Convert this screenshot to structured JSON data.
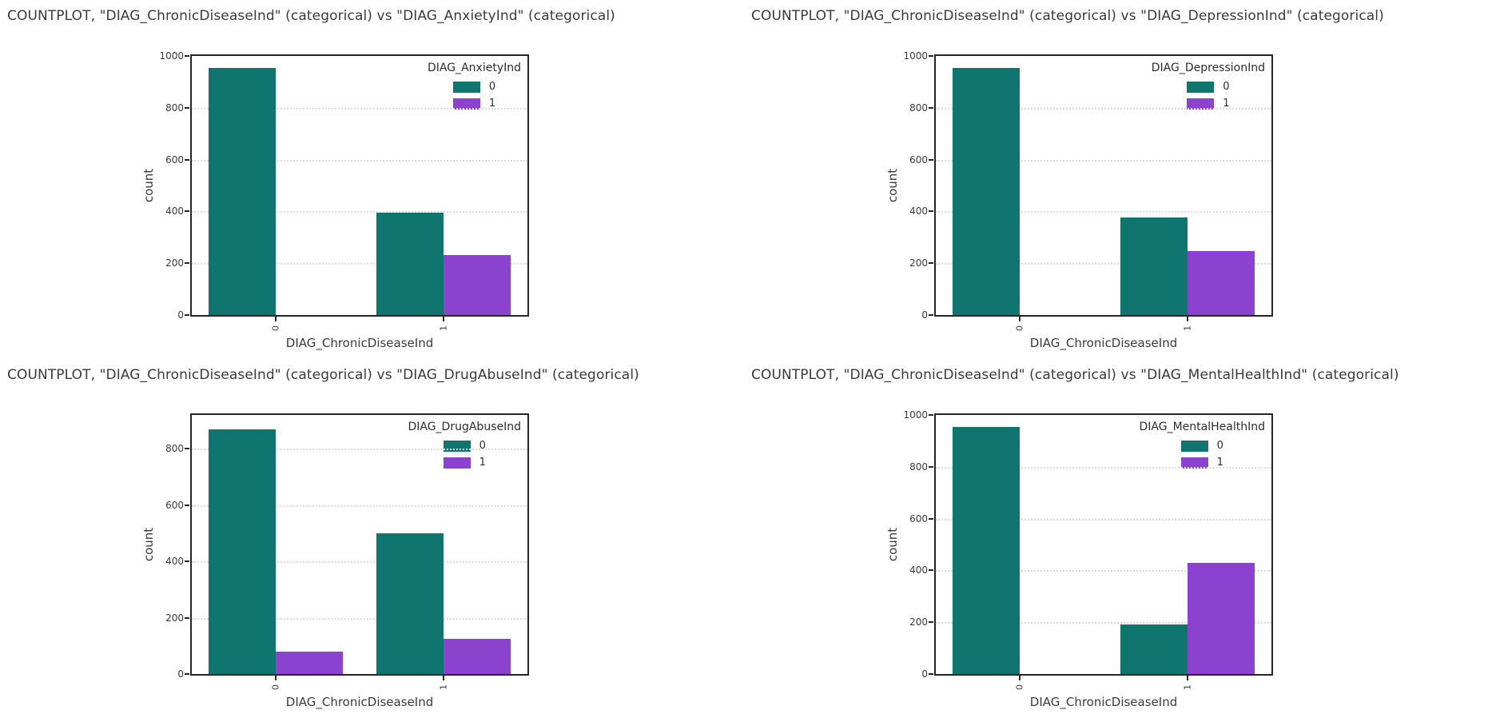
{
  "colors": {
    "hue0": "#0f756e",
    "hue1": "#8a42cf",
    "axis": "#262626",
    "grid": "#dcdcdc",
    "text": "#3a3a3a"
  },
  "chart_data": [
    {
      "type": "bar",
      "title": "COUNTPLOT, \"DIAG_ChronicDiseaseInd\" (categorical) vs \"DIAG_AnxietyInd\" (categorical)",
      "xlabel": "DIAG_ChronicDiseaseInd",
      "ylabel": "count",
      "categories": [
        "0",
        "1"
      ],
      "legend_title": "DIAG_AnxietyInd",
      "legend_position": "upper right",
      "grid": "horizontal dotted",
      "ylim": [
        0,
        1000
      ],
      "yticks": [
        0,
        200,
        400,
        600,
        800,
        1000
      ],
      "series": [
        {
          "name": "0",
          "color_key": "hue0",
          "values": [
            955,
            395
          ]
        },
        {
          "name": "1",
          "color_key": "hue1",
          "values": [
            0,
            230
          ]
        }
      ]
    },
    {
      "type": "bar",
      "title": "COUNTPLOT, \"DIAG_ChronicDiseaseInd\" (categorical) vs \"DIAG_DepressionInd\" (categorical)",
      "xlabel": "DIAG_ChronicDiseaseInd",
      "ylabel": "count",
      "categories": [
        "0",
        "1"
      ],
      "legend_title": "DIAG_DepressionInd",
      "legend_position": "upper right",
      "grid": "horizontal dotted",
      "ylim": [
        0,
        1000
      ],
      "yticks": [
        0,
        200,
        400,
        600,
        800,
        1000
      ],
      "series": [
        {
          "name": "0",
          "color_key": "hue0",
          "values": [
            955,
            378
          ]
        },
        {
          "name": "1",
          "color_key": "hue1",
          "values": [
            0,
            248
          ]
        }
      ]
    },
    {
      "type": "bar",
      "title": "COUNTPLOT, \"DIAG_ChronicDiseaseInd\" (categorical) vs \"DIAG_DrugAbuseInd\" (categorical)",
      "xlabel": "DIAG_ChronicDiseaseInd",
      "ylabel": "count",
      "categories": [
        "0",
        "1"
      ],
      "legend_title": "DIAG_DrugAbuseInd",
      "legend_position": "upper right",
      "grid": "horizontal dotted",
      "ylim": [
        0,
        920
      ],
      "yticks": [
        0,
        200,
        400,
        600,
        800
      ],
      "series": [
        {
          "name": "0",
          "color_key": "hue0",
          "values": [
            870,
            500
          ]
        },
        {
          "name": "1",
          "color_key": "hue1",
          "values": [
            80,
            125
          ]
        }
      ]
    },
    {
      "type": "bar",
      "title": "COUNTPLOT, \"DIAG_ChronicDiseaseInd\" (categorical) vs \"DIAG_MentalHealthInd\" (categorical)",
      "xlabel": "DIAG_ChronicDiseaseInd",
      "ylabel": "count",
      "categories": [
        "0",
        "1"
      ],
      "legend_title": "DIAG_MentalHealthInd",
      "legend_position": "upper right",
      "grid": "horizontal dotted",
      "ylim": [
        0,
        1000
      ],
      "yticks": [
        0,
        200,
        400,
        600,
        800,
        1000
      ],
      "series": [
        {
          "name": "0",
          "color_key": "hue0",
          "values": [
            955,
            190
          ]
        },
        {
          "name": "1",
          "color_key": "hue1",
          "values": [
            0,
            430
          ]
        }
      ]
    }
  ]
}
